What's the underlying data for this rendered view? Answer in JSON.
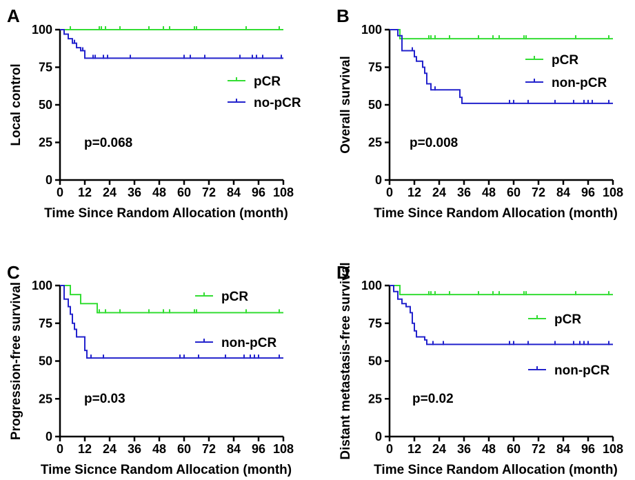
{
  "chart_data": [
    {
      "panel": "A",
      "type": "line",
      "xlabel": "Time Since Random Allocation (month)",
      "ylabel": "Local control",
      "xlim": [
        0,
        108
      ],
      "ylim": [
        0,
        100
      ],
      "xticks": [
        0,
        12,
        24,
        36,
        48,
        60,
        72,
        84,
        96,
        108
      ],
      "yticks": [
        0,
        25,
        50,
        75,
        100
      ],
      "annotation": "p=0.068",
      "series": [
        {
          "name": "pCR",
          "color": "#33dd33",
          "steps": [
            [
              0,
              100
            ],
            [
              108,
              100
            ]
          ],
          "censored": [
            [
              5,
              100
            ],
            [
              19,
              100
            ],
            [
              20,
              100
            ],
            [
              22,
              100
            ],
            [
              29,
              100
            ],
            [
              43,
              100
            ],
            [
              50,
              100
            ],
            [
              53,
              100
            ],
            [
              65,
              100
            ],
            [
              66,
              100
            ],
            [
              90,
              100
            ],
            [
              106,
              100
            ]
          ]
        },
        {
          "name": "no-pCR",
          "color": "#2222cc",
          "steps": [
            [
              0,
              100
            ],
            [
              2,
              97
            ],
            [
              4,
              94
            ],
            [
              6,
              91
            ],
            [
              8,
              88
            ],
            [
              10,
              86
            ],
            [
              12,
              81
            ],
            [
              108,
              81
            ]
          ],
          "censored": [
            [
              7,
              91
            ],
            [
              11,
              86
            ],
            [
              16,
              81
            ],
            [
              17,
              81
            ],
            [
              21,
              81
            ],
            [
              23,
              81
            ],
            [
              34,
              81
            ],
            [
              60,
              81
            ],
            [
              63,
              81
            ],
            [
              70,
              81
            ],
            [
              87,
              81
            ],
            [
              93,
              81
            ],
            [
              95,
              81
            ],
            [
              98,
              81
            ],
            [
              107,
              81
            ]
          ]
        }
      ]
    },
    {
      "panel": "B",
      "type": "line",
      "xlabel": "Time Since Random Allocation (month)",
      "ylabel": "Overall survival",
      "xlim": [
        0,
        108
      ],
      "ylim": [
        0,
        100
      ],
      "xticks": [
        0,
        12,
        24,
        36,
        48,
        60,
        72,
        84,
        96,
        108
      ],
      "yticks": [
        0,
        25,
        50,
        75,
        100
      ],
      "annotation": "p=0.008",
      "series": [
        {
          "name": "pCR",
          "color": "#33dd33",
          "steps": [
            [
              0,
              100
            ],
            [
              5,
              100
            ],
            [
              5,
              94
            ],
            [
              108,
              94
            ]
          ],
          "censored": [
            [
              19,
              94
            ],
            [
              20,
              94
            ],
            [
              22,
              94
            ],
            [
              29,
              94
            ],
            [
              43,
              94
            ],
            [
              50,
              94
            ],
            [
              53,
              94
            ],
            [
              65,
              94
            ],
            [
              66,
              94
            ],
            [
              90,
              94
            ],
            [
              106,
              94
            ]
          ]
        },
        {
          "name": "non-pCR",
          "color": "#2222cc",
          "steps": [
            [
              0,
              100
            ],
            [
              4,
              96
            ],
            [
              6,
              86
            ],
            [
              10,
              86
            ],
            [
              12,
              82
            ],
            [
              13,
              79
            ],
            [
              16,
              75
            ],
            [
              17,
              71
            ],
            [
              18,
              64
            ],
            [
              20,
              60
            ],
            [
              32,
              60
            ],
            [
              34,
              55
            ],
            [
              35,
              51
            ],
            [
              108,
              51
            ]
          ],
          "censored": [
            [
              11,
              86
            ],
            [
              22,
              60
            ],
            [
              58,
              51
            ],
            [
              60,
              51
            ],
            [
              67,
              51
            ],
            [
              80,
              51
            ],
            [
              89,
              51
            ],
            [
              94,
              51
            ],
            [
              96,
              51
            ],
            [
              98,
              51
            ],
            [
              106,
              51
            ]
          ]
        }
      ]
    },
    {
      "panel": "C",
      "type": "line",
      "xlabel": "Time Sicnce Random Allocation  (month)",
      "ylabel": "Progression-free survival",
      "xlim": [
        0,
        108
      ],
      "ylim": [
        0,
        100
      ],
      "xticks": [
        0,
        12,
        24,
        36,
        48,
        60,
        72,
        84,
        96,
        108
      ],
      "yticks": [
        0,
        25,
        50,
        75,
        100
      ],
      "annotation": "p=0.03",
      "series": [
        {
          "name": "pCR",
          "color": "#33dd33",
          "steps": [
            [
              0,
              100
            ],
            [
              5,
              100
            ],
            [
              5,
              94
            ],
            [
              10,
              94
            ],
            [
              10,
              88
            ],
            [
              18,
              88
            ],
            [
              18,
              82
            ],
            [
              108,
              82
            ]
          ],
          "censored": [
            [
              19,
              82
            ],
            [
              22,
              82
            ],
            [
              29,
              82
            ],
            [
              43,
              82
            ],
            [
              50,
              82
            ],
            [
              53,
              82
            ],
            [
              65,
              82
            ],
            [
              66,
              82
            ],
            [
              90,
              82
            ],
            [
              106,
              82
            ]
          ]
        },
        {
          "name": "non-pCR",
          "color": "#2222cc",
          "steps": [
            [
              0,
              100
            ],
            [
              2,
              91
            ],
            [
              4,
              86
            ],
            [
              5,
              81
            ],
            [
              6,
              75
            ],
            [
              7,
              71
            ],
            [
              8,
              66
            ],
            [
              11,
              66
            ],
            [
              12,
              57
            ],
            [
              13,
              52
            ],
            [
              108,
              52
            ]
          ],
          "censored": [
            [
              15,
              52
            ],
            [
              21,
              52
            ],
            [
              58,
              52
            ],
            [
              60,
              52
            ],
            [
              67,
              52
            ],
            [
              80,
              52
            ],
            [
              89,
              52
            ],
            [
              92,
              52
            ],
            [
              94,
              52
            ],
            [
              96,
              52
            ],
            [
              106,
              52
            ]
          ]
        }
      ]
    },
    {
      "panel": "D",
      "type": "line",
      "xlabel": "Time Since Random Allocation (month)",
      "ylabel": "Distant metastasis-free survival",
      "xlim": [
        0,
        108
      ],
      "ylim": [
        0,
        100
      ],
      "xticks": [
        0,
        12,
        24,
        36,
        48,
        60,
        72,
        84,
        96,
        108
      ],
      "yticks": [
        0,
        25,
        50,
        75,
        100
      ],
      "annotation": "p=0.02",
      "series": [
        {
          "name": "pCR",
          "color": "#33dd33",
          "steps": [
            [
              0,
              100
            ],
            [
              5,
              100
            ],
            [
              5,
              94
            ],
            [
              108,
              94
            ]
          ],
          "censored": [
            [
              19,
              94
            ],
            [
              20,
              94
            ],
            [
              22,
              94
            ],
            [
              29,
              94
            ],
            [
              43,
              94
            ],
            [
              50,
              94
            ],
            [
              53,
              94
            ],
            [
              65,
              94
            ],
            [
              66,
              94
            ],
            [
              90,
              94
            ],
            [
              106,
              94
            ]
          ]
        },
        {
          "name": "non-pCR",
          "color": "#2222cc",
          "steps": [
            [
              0,
              100
            ],
            [
              2,
              96
            ],
            [
              4,
              91
            ],
            [
              6,
              88
            ],
            [
              8,
              86
            ],
            [
              10,
              82
            ],
            [
              11,
              75
            ],
            [
              12,
              70
            ],
            [
              13,
              66
            ],
            [
              16,
              66
            ],
            [
              17,
              64
            ],
            [
              18,
              61
            ],
            [
              108,
              61
            ]
          ],
          "censored": [
            [
              21,
              61
            ],
            [
              26,
              61
            ],
            [
              58,
              61
            ],
            [
              60,
              61
            ],
            [
              67,
              61
            ],
            [
              80,
              61
            ],
            [
              89,
              61
            ],
            [
              92,
              61
            ],
            [
              94,
              61
            ],
            [
              96,
              61
            ],
            [
              106,
              61
            ]
          ]
        }
      ]
    }
  ]
}
